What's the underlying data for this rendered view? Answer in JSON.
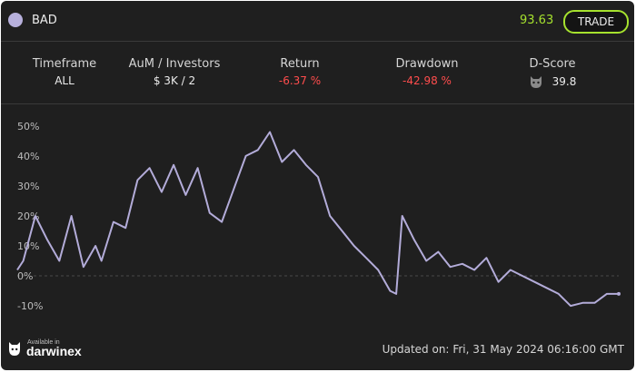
{
  "header": {
    "name": "BAD",
    "price": "93.63",
    "trade_label": "TRADE"
  },
  "stats": {
    "timeframe": {
      "label": "Timeframe",
      "value": "ALL"
    },
    "aum": {
      "label": "AuM / Investors",
      "value": "$ 3K / 2"
    },
    "return": {
      "label": "Return",
      "value": "-6.37 %"
    },
    "drawdown": {
      "label": "Drawdown",
      "value": "-42.98 %"
    },
    "dscore": {
      "label": "D-Score",
      "value": "39.8",
      "icon": "darwin-mask-icon"
    }
  },
  "colors": {
    "line": "#b3acd9",
    "accent": "#a6e22e",
    "negative": "#ff4d4d",
    "background": "#1f1f1f"
  },
  "chart_data": {
    "type": "line",
    "yticks": [
      "50%",
      "40%",
      "30%",
      "20%",
      "10%",
      "0%",
      "-10%"
    ],
    "ylim": [
      -13,
      53
    ],
    "x": [
      0,
      1,
      3,
      5,
      7,
      9,
      11,
      13,
      14,
      16,
      18,
      20,
      22,
      24,
      26,
      28,
      30,
      32,
      34,
      36,
      38,
      40,
      42,
      44,
      46,
      48,
      50,
      52,
      54,
      56,
      58,
      60,
      62,
      63,
      64,
      66,
      68,
      70,
      72,
      74,
      76,
      78,
      80,
      82,
      84,
      86,
      88,
      90,
      92,
      94,
      96,
      98,
      100
    ],
    "values": [
      2,
      5,
      20,
      12,
      5,
      20,
      3,
      10,
      5,
      18,
      16,
      32,
      36,
      28,
      37,
      27,
      36,
      21,
      18,
      29,
      40,
      42,
      48,
      38,
      42,
      37,
      33,
      20,
      15,
      10,
      6,
      2,
      -5,
      -6,
      20,
      12,
      5,
      8,
      3,
      4,
      2,
      6,
      -2,
      2,
      0,
      -2,
      -4,
      -6,
      -10,
      -9,
      -9,
      -6,
      -6
    ]
  },
  "footer": {
    "logo_small": "Available in",
    "logo_brand": "darwinex",
    "updated_label": "Updated on:",
    "updated_value": "Fri, 31 May 2024 06:16:00 GMT"
  }
}
